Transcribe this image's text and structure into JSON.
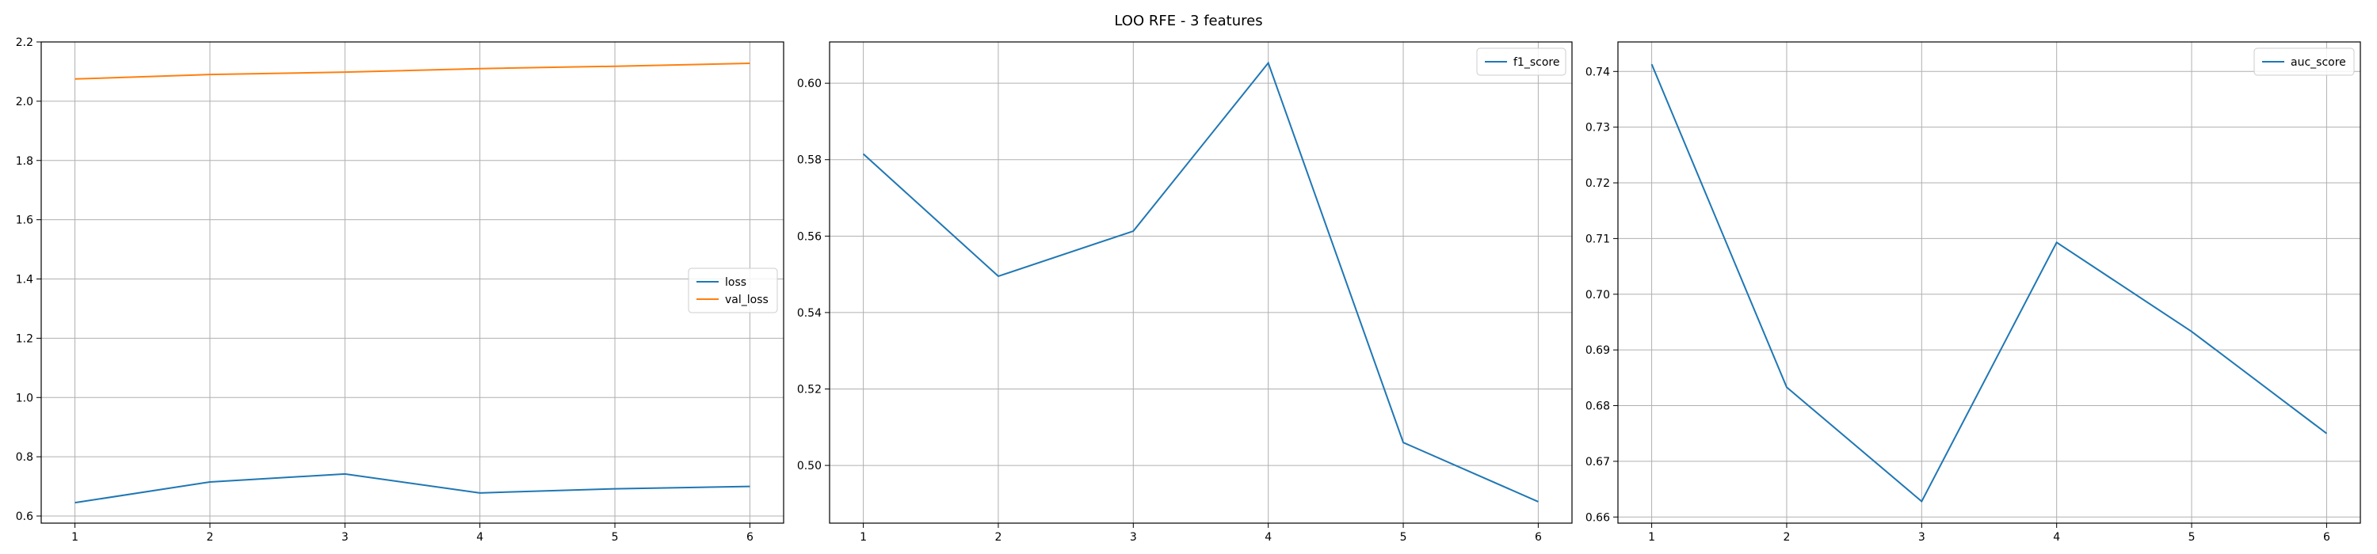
{
  "figure": {
    "title": "LOO RFE - 3 features"
  },
  "chart_data": [
    {
      "type": "line",
      "x": [
        1,
        2,
        3,
        4,
        5,
        6
      ],
      "series": [
        {
          "name": "loss",
          "color": "#1f77b4",
          "values": [
            0.645,
            0.715,
            0.742,
            0.678,
            0.692,
            0.7
          ]
        },
        {
          "name": "val_loss",
          "color": "#ff7f0e",
          "values": [
            2.075,
            2.09,
            2.098,
            2.11,
            2.118,
            2.128
          ]
        }
      ],
      "xticks": [
        1,
        2,
        3,
        4,
        5,
        6
      ],
      "yticks": [
        0.6,
        0.8,
        1.0,
        1.2,
        1.4,
        1.6,
        1.8,
        2.0,
        2.2
      ],
      "yticklabels": [
        "0.6",
        "0.8",
        "1.0",
        "1.2",
        "1.4",
        "1.6",
        "1.8",
        "2.0",
        "2.2"
      ],
      "xlim": [
        0.75,
        6.25
      ],
      "ylim": [
        0.576,
        2.2
      ],
      "grid": true,
      "legend": "center-right",
      "xlabel": "",
      "ylabel": ""
    },
    {
      "type": "line",
      "x": [
        1,
        2,
        3,
        4,
        5,
        6
      ],
      "series": [
        {
          "name": "f1_score",
          "color": "#1f77b4",
          "values": [
            0.5815,
            0.5495,
            0.5613,
            0.6053,
            0.506,
            0.4905
          ]
        }
      ],
      "xticks": [
        1,
        2,
        3,
        4,
        5,
        6
      ],
      "yticks": [
        0.5,
        0.52,
        0.54,
        0.56,
        0.58,
        0.6
      ],
      "yticklabels": [
        "0.50",
        "0.52",
        "0.54",
        "0.56",
        "0.58",
        "0.60"
      ],
      "xlim": [
        0.75,
        6.25
      ],
      "ylim": [
        0.4849,
        0.6108
      ],
      "grid": true,
      "legend": "top-right",
      "xlabel": "",
      "ylabel": ""
    },
    {
      "type": "line",
      "x": [
        1,
        2,
        3,
        4,
        5,
        6
      ],
      "series": [
        {
          "name": "auc_score",
          "color": "#1f77b4",
          "values": [
            0.7413,
            0.6833,
            0.6628,
            0.7093,
            0.6933,
            0.675
          ]
        }
      ],
      "xticks": [
        1,
        2,
        3,
        4,
        5,
        6
      ],
      "yticks": [
        0.66,
        0.67,
        0.68,
        0.69,
        0.7,
        0.71,
        0.72,
        0.73,
        0.74
      ],
      "yticklabels": [
        "0.66",
        "0.67",
        "0.68",
        "0.69",
        "0.70",
        "0.71",
        "0.72",
        "0.73",
        "0.74"
      ],
      "xlim": [
        0.75,
        6.25
      ],
      "ylim": [
        0.6589,
        0.7453
      ],
      "grid": true,
      "legend": "top-right",
      "xlabel": "",
      "ylabel": ""
    }
  ]
}
